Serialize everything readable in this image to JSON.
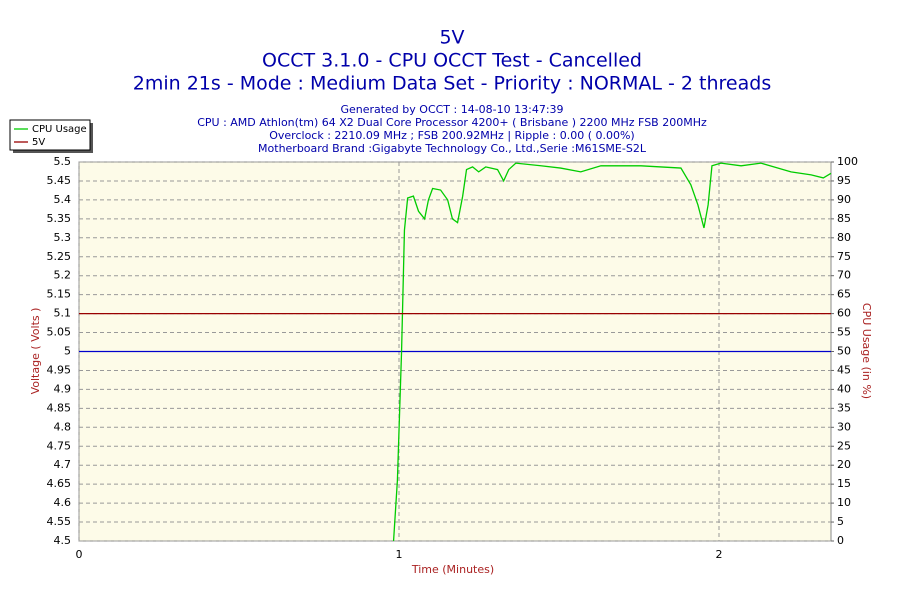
{
  "chart_data": {
    "type": "line",
    "title": "5V",
    "subtitle": "OCCT 3.1.0 - CPU OCCT Test - Cancelled",
    "subtitle2": "2min 21s - Mode : Medium Data Set - Priority : NORMAL - 2 threads",
    "info": [
      "Generated by OCCT : 14-08-10 13:47:39",
      "CPU : AMD Athlon(tm) 64 X2 Dual Core Processor 4200+ ( Brisbane ) 2200 MHz FSB 200MHz",
      "Overclock : 2210.09 MHz ; FSB 200.92MHz | Ripple : 0.00 ( 0.00%)",
      "Motherboard Brand :Gigabyte Technology Co., Ltd.,Serie :M61SME-S2L"
    ],
    "xlabel": "Time (Minutes)",
    "ylabel": "Voltage ( Volts )",
    "y2label": "CPU Usage (in %)",
    "xlim": [
      0,
      2.35
    ],
    "xticks": [
      0,
      1,
      2
    ],
    "ylim": [
      4.5,
      5.5
    ],
    "yticks": [
      4.5,
      4.55,
      4.6,
      4.65,
      4.7,
      4.75,
      4.8,
      4.85,
      4.9,
      4.95,
      5,
      5.05,
      5.1,
      5.15,
      5.2,
      5.25,
      5.3,
      5.35,
      5.4,
      5.45,
      5.5
    ],
    "y2lim": [
      0,
      100
    ],
    "y2ticks": [
      0,
      5,
      10,
      15,
      20,
      25,
      30,
      35,
      40,
      45,
      50,
      55,
      60,
      65,
      70,
      75,
      80,
      85,
      90,
      95,
      100
    ],
    "reference_line": 5,
    "reference_color": "#0000cc",
    "grid": true,
    "series": [
      {
        "name": "CPU Usage",
        "color": "#00cc00",
        "axis": "y2",
        "x": [
          0.983,
          0.995,
          1.008,
          1.017,
          1.027,
          1.045,
          1.061,
          1.08,
          1.092,
          1.105,
          1.13,
          1.152,
          1.167,
          1.183,
          1.199,
          1.211,
          1.23,
          1.249,
          1.271,
          1.308,
          1.327,
          1.343,
          1.365,
          1.443,
          1.505,
          1.568,
          1.631,
          1.756,
          1.881,
          1.912,
          1.934,
          1.953,
          1.966,
          1.978,
          2.006,
          2.069,
          2.131,
          2.225,
          2.288,
          2.326,
          2.35
        ],
        "values": [
          0,
          16,
          50,
          82,
          90.5,
          91,
          87,
          85,
          90,
          93,
          92.6,
          90,
          85,
          84,
          91,
          98,
          98.7,
          97.4,
          98.7,
          98,
          95,
          98,
          99.7,
          99,
          98.4,
          97.4,
          99,
          99,
          98.4,
          94,
          88.7,
          82.6,
          88.7,
          99,
          99.7,
          99,
          99.7,
          97.4,
          96.6,
          95.8,
          97
        ]
      },
      {
        "name": "5V",
        "color": "#990000",
        "x": [
          0,
          2.35
        ],
        "values": [
          5.1,
          5.1
        ]
      }
    ]
  }
}
